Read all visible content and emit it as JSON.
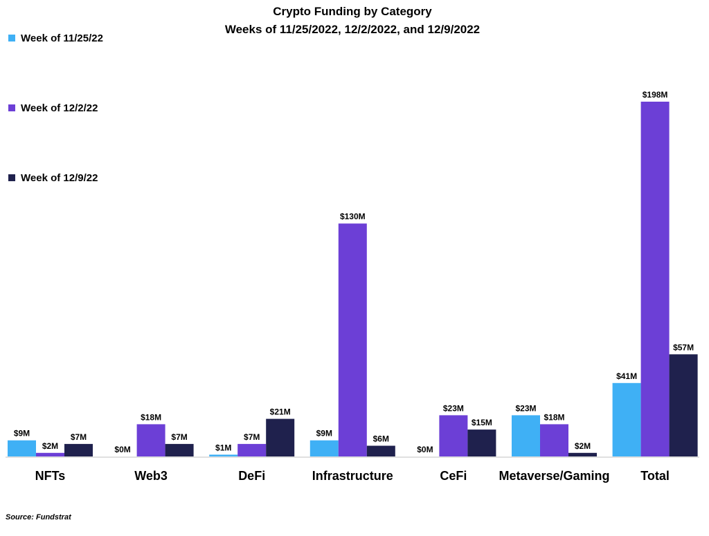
{
  "source": "Source: Fundstrat",
  "colors": {
    "series": [
      "#3fb0f5",
      "#6c3fd6",
      "#1f214d"
    ],
    "axis": "#c0c0c0"
  },
  "chart_data": {
    "type": "bar",
    "title": "Crypto Funding by Category",
    "subtitle": "Weeks of 11/25/2022, 12/2/2022, and 12/9/2022",
    "xlabel": "",
    "ylabel": "",
    "ylim": [
      0,
      198
    ],
    "grid": false,
    "legend_position": "left",
    "categories": [
      "NFTs",
      "Web3",
      "DeFi",
      "Infrastructure",
      "CeFi",
      "Metaverse/Gaming",
      "Total"
    ],
    "series": [
      {
        "name": "Week of 11/25/22",
        "values": [
          9,
          0,
          1,
          9,
          0,
          23,
          41
        ],
        "labels": [
          "$9M",
          "$0M",
          "$1M",
          "$9M",
          "$0M",
          "$23M",
          "$41M"
        ]
      },
      {
        "name": "Week of 12/2/22",
        "values": [
          2,
          18,
          7,
          130,
          23,
          18,
          198
        ],
        "labels": [
          "$2M",
          "$18M",
          "$7M",
          "$130M",
          "$23M",
          "$18M",
          "$198M"
        ]
      },
      {
        "name": "Week of 12/9/22",
        "values": [
          7,
          7,
          21,
          6,
          15,
          2,
          57
        ],
        "labels": [
          "$7M",
          "$7M",
          "$21M",
          "$6M",
          "$15M",
          "$2M",
          "$57M"
        ]
      }
    ]
  }
}
